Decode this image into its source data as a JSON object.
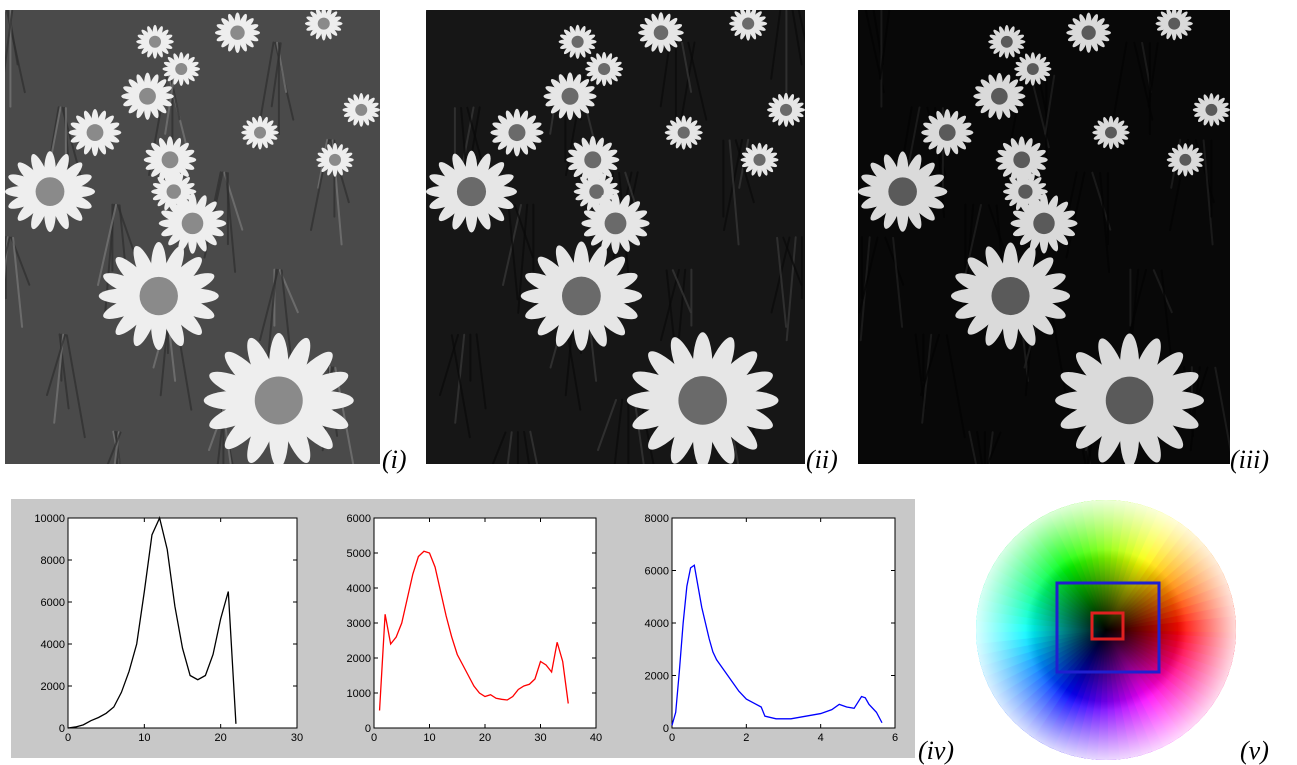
{
  "panel_labels": {
    "i": "(i)",
    "ii": "(ii)",
    "iii": "(iii)",
    "iv": "(iv)",
    "v": "(v)"
  },
  "photos": [
    {
      "name": "grayscale-daisies",
      "tone": "normal"
    },
    {
      "name": "dark-daisies",
      "tone": "dark"
    },
    {
      "name": "darker-daisies",
      "tone": "darker"
    }
  ],
  "chart_data": [
    {
      "type": "line",
      "color": "#000000",
      "xlim": [
        0,
        30
      ],
      "ylim": [
        0,
        10000
      ],
      "xticks": [
        0,
        10,
        20,
        30
      ],
      "yticks": [
        0,
        2000,
        4000,
        6000,
        8000,
        10000
      ],
      "x": [
        0,
        1,
        2,
        3,
        4,
        5,
        6,
        7,
        8,
        9,
        10,
        11,
        12,
        13,
        14,
        15,
        16,
        17,
        18,
        19,
        20,
        21,
        22
      ],
      "y": [
        0,
        50,
        150,
        350,
        500,
        700,
        1000,
        1700,
        2700,
        4000,
        6500,
        9200,
        10000,
        8500,
        5800,
        3800,
        2500,
        2300,
        2500,
        3500,
        5200,
        6500,
        200
      ]
    },
    {
      "type": "line",
      "color": "#ff0000",
      "xlim": [
        0,
        40
      ],
      "ylim": [
        0,
        6000
      ],
      "xticks": [
        0,
        10,
        20,
        30,
        40
      ],
      "yticks": [
        0,
        1000,
        2000,
        3000,
        4000,
        5000,
        6000
      ],
      "x": [
        1,
        2,
        3,
        4,
        5,
        6,
        7,
        8,
        9,
        10,
        11,
        12,
        13,
        14,
        15,
        16,
        17,
        18,
        19,
        20,
        21,
        22,
        23,
        24,
        25,
        26,
        27,
        28,
        29,
        30,
        31,
        32,
        33,
        34,
        35
      ],
      "y": [
        500,
        3250,
        2400,
        2600,
        3000,
        3700,
        4400,
        4900,
        5050,
        5000,
        4600,
        3900,
        3200,
        2600,
        2100,
        1800,
        1500,
        1200,
        1000,
        900,
        950,
        850,
        820,
        800,
        900,
        1100,
        1200,
        1250,
        1400,
        1900,
        1800,
        1600,
        2450,
        1900,
        700
      ]
    },
    {
      "type": "line",
      "color": "#0000ff",
      "xlim": [
        0,
        6
      ],
      "ylim": [
        0,
        8000
      ],
      "xticks": [
        0,
        2,
        4,
        6
      ],
      "yticks": [
        0,
        2000,
        4000,
        6000,
        8000
      ],
      "x": [
        0,
        0.1,
        0.2,
        0.3,
        0.4,
        0.5,
        0.6,
        0.7,
        0.8,
        0.9,
        1.0,
        1.1,
        1.2,
        1.4,
        1.6,
        1.8,
        2.0,
        2.2,
        2.4,
        2.5,
        2.8,
        3.2,
        3.6,
        4.0,
        4.3,
        4.5,
        4.7,
        4.9,
        5.1,
        5.2,
        5.3,
        5.5,
        5.65
      ],
      "y": [
        100,
        600,
        2200,
        4000,
        5400,
        6100,
        6200,
        5400,
        4600,
        4000,
        3400,
        2900,
        2600,
        2200,
        1800,
        1400,
        1100,
        950,
        800,
        450,
        350,
        350,
        450,
        550,
        700,
        900,
        800,
        750,
        1200,
        1150,
        900,
        600,
        200
      ]
    }
  ],
  "color_wheel": {
    "outer_box_color": "#1f1fd0",
    "inner_box_color": "#e02020"
  }
}
